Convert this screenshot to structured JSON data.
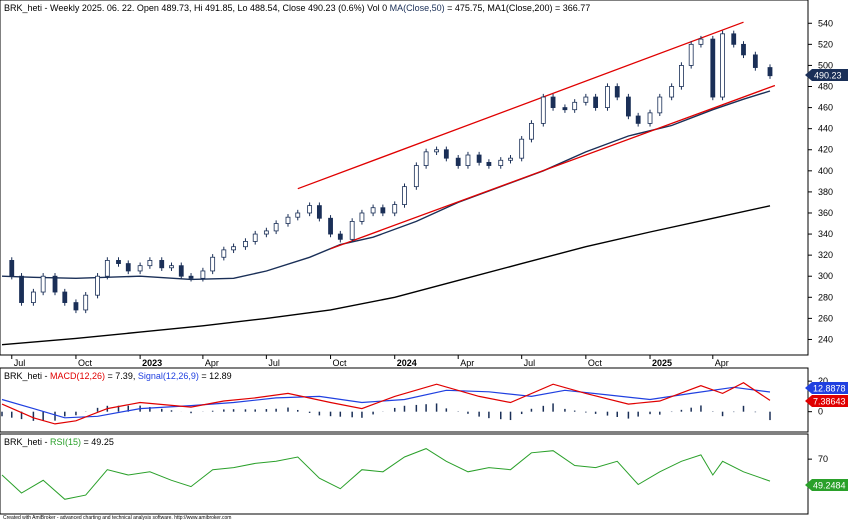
{
  "header": {
    "symbol": "BRK_heti",
    "title_rest": " - Weekly 2025. 06. 22. Open 489.73, Hi 491.85, Lo 488.54, Close 490.23 (0.6%) Vol 0 ",
    "ma50_label": "MA(Close,50)",
    "ma50_value": " = 475.75, ",
    "ma200_label": "MA1(Close,200)",
    "ma200_value": " = 366.77"
  },
  "macd_header": {
    "symbol": "BRK_heti - ",
    "macd_label": "MACD(12,26)",
    "macd_value": " = 7.39, ",
    "signal_label": "Signal(12,26,9)",
    "signal_value": " = 12.89"
  },
  "rsi_header": {
    "symbol": "BRK_heti - ",
    "rsi_label": "RSI(15)",
    "rsi_value": " = 49.25"
  },
  "badges": {
    "price": "490.23",
    "signal": "12.8878",
    "macd": "7.38643",
    "rsi": "49.2484"
  },
  "footer": "Created with AmiBroker - advanced charting and technical analysis software. http://www.amibroker.com",
  "colors": {
    "up_candle": "#ffffff",
    "down_candle": "#1a2f57",
    "ma50": "#1a2f57",
    "ma200": "#000000",
    "channel": "#e00000",
    "macd": "#e00000",
    "signal": "#2040e0",
    "hist": "#1a2f57",
    "rsi": "#2aa02a",
    "price_badge": "#1a2f57",
    "signal_badge": "#2040e0",
    "macd_badge": "#e00000",
    "rsi_badge": "#2aa02a"
  },
  "chart_data": {
    "type": "candlestick",
    "price_axis": {
      "ticks": [
        240,
        260,
        280,
        300,
        320,
        340,
        360,
        380,
        400,
        420,
        440,
        460,
        480,
        500,
        520,
        540
      ],
      "ylim": [
        230,
        545
      ]
    },
    "time_axis": {
      "range": [
        "2022-06-17",
        "2025-06-22"
      ],
      "labels": [
        {
          "text": "Jul",
          "date": "2022-07-01",
          "bold": false
        },
        {
          "text": "Oct",
          "date": "2022-10-01",
          "bold": false
        },
        {
          "text": "2023",
          "date": "2023-01-01",
          "bold": true
        },
        {
          "text": "Apr",
          "date": "2023-04-01",
          "bold": false
        },
        {
          "text": "Jul",
          "date": "2023-07-01",
          "bold": false
        },
        {
          "text": "Oct",
          "date": "2023-10-01",
          "bold": false
        },
        {
          "text": "2024",
          "date": "2024-01-01",
          "bold": true
        },
        {
          "text": "Apr",
          "date": "2024-04-01",
          "bold": false
        },
        {
          "text": "Jul",
          "date": "2024-07-01",
          "bold": false
        },
        {
          "text": "Oct",
          "date": "2024-10-01",
          "bold": false
        },
        {
          "text": "2025",
          "date": "2025-01-01",
          "bold": true
        },
        {
          "text": "Apr",
          "date": "2025-04-01",
          "bold": false
        }
      ]
    },
    "closes": [
      [
        "2022-06-17",
        315
      ],
      [
        "2022-07-01",
        300
      ],
      [
        "2022-07-15",
        275
      ],
      [
        "2022-08-01",
        285
      ],
      [
        "2022-08-15",
        300
      ],
      [
        "2022-09-01",
        285
      ],
      [
        "2022-09-15",
        275
      ],
      [
        "2022-10-01",
        268
      ],
      [
        "2022-10-15",
        282
      ],
      [
        "2022-11-01",
        300
      ],
      [
        "2022-11-15",
        315
      ],
      [
        "2022-12-01",
        312
      ],
      [
        "2022-12-15",
        305
      ],
      [
        "2023-01-01",
        310
      ],
      [
        "2023-01-15",
        315
      ],
      [
        "2023-02-01",
        308
      ],
      [
        "2023-02-15",
        310
      ],
      [
        "2023-03-01",
        300
      ],
      [
        "2023-03-15",
        298
      ],
      [
        "2023-04-01",
        305
      ],
      [
        "2023-04-15",
        318
      ],
      [
        "2023-05-01",
        325
      ],
      [
        "2023-05-15",
        328
      ],
      [
        "2023-06-01",
        333
      ],
      [
        "2023-06-15",
        340
      ],
      [
        "2023-07-01",
        343
      ],
      [
        "2023-07-15",
        350
      ],
      [
        "2023-08-01",
        356
      ],
      [
        "2023-08-15",
        360
      ],
      [
        "2023-09-01",
        367
      ],
      [
        "2023-09-15",
        355
      ],
      [
        "2023-10-01",
        340
      ],
      [
        "2023-10-15",
        335
      ],
      [
        "2023-11-01",
        352
      ],
      [
        "2023-11-15",
        360
      ],
      [
        "2023-12-01",
        365
      ],
      [
        "2023-12-15",
        360
      ],
      [
        "2024-01-01",
        368
      ],
      [
        "2024-01-15",
        385
      ],
      [
        "2024-02-01",
        405
      ],
      [
        "2024-02-15",
        418
      ],
      [
        "2024-03-01",
        420
      ],
      [
        "2024-03-15",
        412
      ],
      [
        "2024-04-01",
        405
      ],
      [
        "2024-04-15",
        415
      ],
      [
        "2024-05-01",
        408
      ],
      [
        "2024-05-15",
        405
      ],
      [
        "2024-06-01",
        410
      ],
      [
        "2024-06-15",
        412
      ],
      [
        "2024-07-01",
        430
      ],
      [
        "2024-07-15",
        445
      ],
      [
        "2024-08-01",
        470
      ],
      [
        "2024-08-15",
        460
      ],
      [
        "2024-09-01",
        458
      ],
      [
        "2024-09-15",
        465
      ],
      [
        "2024-10-01",
        470
      ],
      [
        "2024-10-15",
        460
      ],
      [
        "2024-11-01",
        480
      ],
      [
        "2024-11-15",
        470
      ],
      [
        "2024-12-01",
        452
      ],
      [
        "2024-12-15",
        445
      ],
      [
        "2025-01-01",
        455
      ],
      [
        "2025-01-15",
        470
      ],
      [
        "2025-02-01",
        480
      ],
      [
        "2025-02-15",
        500
      ],
      [
        "2025-03-01",
        520
      ],
      [
        "2025-03-15",
        525
      ],
      [
        "2025-04-01",
        470
      ],
      [
        "2025-04-15",
        530
      ],
      [
        "2025-05-01",
        520
      ],
      [
        "2025-05-15",
        510
      ],
      [
        "2025-06-01",
        498
      ],
      [
        "2025-06-22",
        490.23
      ]
    ],
    "ma50": [
      [
        "2022-06-17",
        300
      ],
      [
        "2022-08-01",
        299
      ],
      [
        "2022-10-01",
        298
      ],
      [
        "2023-01-01",
        300
      ],
      [
        "2023-03-15",
        297
      ],
      [
        "2023-05-15",
        298
      ],
      [
        "2023-07-01",
        305
      ],
      [
        "2023-09-01",
        318
      ],
      [
        "2023-10-15",
        330
      ],
      [
        "2023-12-01",
        337
      ],
      [
        "2024-02-01",
        352
      ],
      [
        "2024-04-01",
        370
      ],
      [
        "2024-06-01",
        385
      ],
      [
        "2024-08-01",
        400
      ],
      [
        "2024-10-01",
        418
      ],
      [
        "2024-12-01",
        433
      ],
      [
        "2025-02-01",
        443
      ],
      [
        "2025-04-01",
        458
      ],
      [
        "2025-05-15",
        468
      ],
      [
        "2025-06-22",
        475.75
      ]
    ],
    "ma200": [
      [
        "2022-06-17",
        235
      ],
      [
        "2022-10-01",
        241
      ],
      [
        "2023-01-01",
        247
      ],
      [
        "2023-04-01",
        253
      ],
      [
        "2023-07-01",
        260
      ],
      [
        "2023-10-01",
        268
      ],
      [
        "2024-01-01",
        280
      ],
      [
        "2024-04-01",
        296
      ],
      [
        "2024-07-01",
        312
      ],
      [
        "2024-10-01",
        328
      ],
      [
        "2025-01-01",
        342
      ],
      [
        "2025-04-01",
        355
      ],
      [
        "2025-06-22",
        366.77
      ]
    ],
    "channel": {
      "upper": [
        [
          "2023-08-15",
          383
        ],
        [
          "2025-05-15",
          541
        ]
      ],
      "lower": [
        [
          "2023-10-01",
          326
        ],
        [
          "2025-06-29",
          481
        ]
      ]
    },
    "macd_panel": {
      "ticks": [
        0,
        20
      ],
      "ylim": [
        -12,
        26
      ],
      "macd": [
        [
          "2022-06-17",
          5
        ],
        [
          "2022-08-01",
          -4
        ],
        [
          "2022-09-01",
          -8
        ],
        [
          "2022-10-01",
          -6
        ],
        [
          "2022-11-15",
          2
        ],
        [
          "2023-01-01",
          6
        ],
        [
          "2023-03-15",
          3
        ],
        [
          "2023-05-01",
          7
        ],
        [
          "2023-06-15",
          9
        ],
        [
          "2023-08-01",
          12
        ],
        [
          "2023-10-01",
          6
        ],
        [
          "2023-11-15",
          2
        ],
        [
          "2024-01-01",
          10
        ],
        [
          "2024-03-01",
          18
        ],
        [
          "2024-05-01",
          10
        ],
        [
          "2024-06-15",
          6
        ],
        [
          "2024-08-15",
          18
        ],
        [
          "2024-10-01",
          12
        ],
        [
          "2024-12-01",
          5
        ],
        [
          "2025-01-15",
          7
        ],
        [
          "2025-03-15",
          17
        ],
        [
          "2025-04-15",
          12
        ],
        [
          "2025-05-15",
          19
        ],
        [
          "2025-06-22",
          7.39
        ]
      ],
      "signal": [
        [
          "2022-06-17",
          8
        ],
        [
          "2022-08-01",
          2
        ],
        [
          "2022-09-15",
          -4
        ],
        [
          "2022-11-01",
          -3
        ],
        [
          "2023-01-01",
          2
        ],
        [
          "2023-03-15",
          4
        ],
        [
          "2023-05-15",
          6
        ],
        [
          "2023-07-15",
          9
        ],
        [
          "2023-09-15",
          10
        ],
        [
          "2023-11-15",
          6
        ],
        [
          "2024-01-15",
          8
        ],
        [
          "2024-03-15",
          14
        ],
        [
          "2024-05-15",
          13
        ],
        [
          "2024-07-15",
          10
        ],
        [
          "2024-09-01",
          14
        ],
        [
          "2024-11-01",
          11
        ],
        [
          "2025-01-01",
          8
        ],
        [
          "2025-03-01",
          12
        ],
        [
          "2025-05-01",
          16
        ],
        [
          "2025-06-22",
          12.89
        ]
      ]
    },
    "rsi_panel": {
      "ticks": [
        70
      ],
      "ylim": [
        20,
        90
      ],
      "rsi": [
        [
          "2022-06-17",
          55
        ],
        [
          "2022-07-15",
          38
        ],
        [
          "2022-08-15",
          50
        ],
        [
          "2022-09-15",
          32
        ],
        [
          "2022-10-15",
          36
        ],
        [
          "2022-11-15",
          60
        ],
        [
          "2022-12-15",
          55
        ],
        [
          "2023-01-15",
          58
        ],
        [
          "2023-02-15",
          50
        ],
        [
          "2023-03-15",
          44
        ],
        [
          "2023-04-15",
          60
        ],
        [
          "2023-05-15",
          62
        ],
        [
          "2023-06-15",
          66
        ],
        [
          "2023-07-15",
          68
        ],
        [
          "2023-08-15",
          72
        ],
        [
          "2023-09-15",
          52
        ],
        [
          "2023-10-15",
          42
        ],
        [
          "2023-11-15",
          60
        ],
        [
          "2023-12-15",
          58
        ],
        [
          "2024-01-15",
          72
        ],
        [
          "2024-02-15",
          80
        ],
        [
          "2024-03-15",
          68
        ],
        [
          "2024-04-15",
          58
        ],
        [
          "2024-05-15",
          62
        ],
        [
          "2024-06-15",
          60
        ],
        [
          "2024-07-15",
          76
        ],
        [
          "2024-08-15",
          78
        ],
        [
          "2024-09-15",
          64
        ],
        [
          "2024-10-15",
          62
        ],
        [
          "2024-11-15",
          68
        ],
        [
          "2024-12-15",
          46
        ],
        [
          "2025-01-15",
          58
        ],
        [
          "2025-02-15",
          68
        ],
        [
          "2025-03-15",
          74
        ],
        [
          "2025-04-01",
          55
        ],
        [
          "2025-04-15",
          68
        ],
        [
          "2025-05-15",
          58
        ],
        [
          "2025-06-22",
          49.25
        ]
      ]
    }
  }
}
